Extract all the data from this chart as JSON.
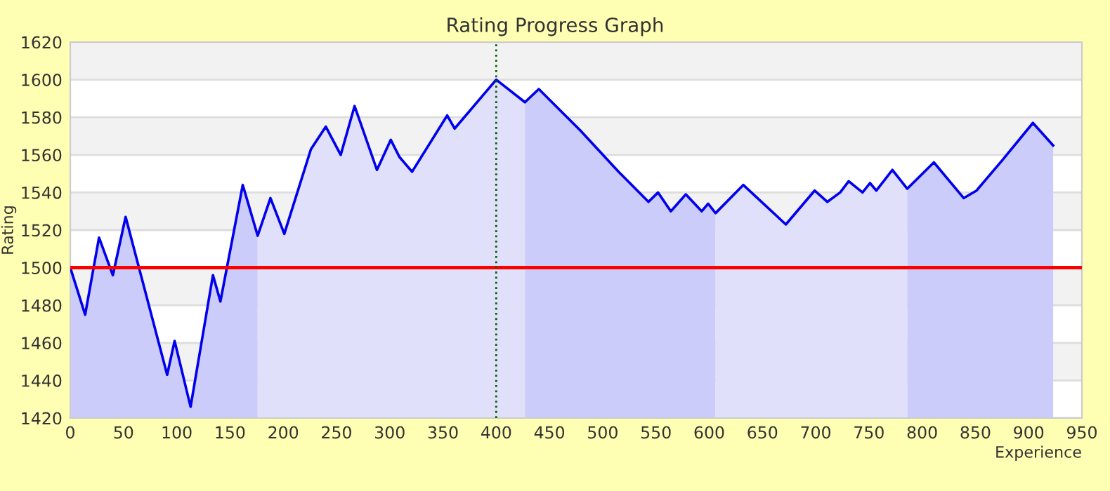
{
  "chart_data": {
    "type": "line",
    "title": "Rating Progress Graph",
    "xlabel": "Experience",
    "ylabel": "Rating",
    "xlim": [
      0,
      950
    ],
    "xticks": [
      0,
      50,
      100,
      150,
      200,
      250,
      300,
      350,
      400,
      450,
      500,
      550,
      600,
      650,
      700,
      750,
      800,
      850,
      900,
      950
    ],
    "ylim": [
      1420,
      1620
    ],
    "yticks": [
      1420,
      1440,
      1460,
      1480,
      1500,
      1520,
      1540,
      1560,
      1580,
      1600,
      1620
    ],
    "grid": "y",
    "legend": false,
    "marker": "none",
    "line_style": "solid",
    "series": [
      {
        "type": "area",
        "color": "#ccccfa",
        "x": [
          0,
          14,
          27,
          40,
          52,
          91,
          98,
          113,
          134,
          141,
          162,
          176
        ],
        "values": [
          1500,
          1475,
          1516,
          1496,
          1527,
          1443,
          1461,
          1426,
          1496,
          1482,
          1544,
          1517
        ]
      },
      {
        "type": "area",
        "color": "#e0e0fa",
        "x": [
          176,
          188,
          201,
          226,
          240,
          254,
          267,
          288,
          301,
          309,
          321,
          354,
          361,
          400,
          427
        ],
        "values": [
          1517,
          1537,
          1518,
          1563,
          1575,
          1560,
          1586,
          1552,
          1568,
          1559,
          1551,
          1581,
          1574,
          1600,
          1588
        ]
      },
      {
        "type": "area",
        "color": "#ccccfa",
        "x": [
          427,
          440,
          479,
          515,
          543,
          552,
          564,
          578,
          593,
          599,
          606
        ],
        "values": [
          1588,
          1595,
          1573,
          1551,
          1535,
          1540,
          1530,
          1539,
          1530,
          1534,
          1529
        ]
      },
      {
        "type": "area",
        "color": "#e0e0fa",
        "x": [
          606,
          632,
          672,
          699,
          711,
          723,
          731,
          744,
          751,
          757,
          772,
          786
        ],
        "values": [
          1529,
          1544,
          1523,
          1541,
          1535,
          1540,
          1546,
          1540,
          1545,
          1541,
          1552,
          1542
        ]
      },
      {
        "type": "area",
        "color": "#ccccfa",
        "x": [
          786,
          811,
          839,
          851,
          875,
          904,
          923
        ],
        "values": [
          1542,
          1556,
          1537,
          1541,
          1557,
          1577,
          1565
        ]
      },
      {
        "color": "#0000ee",
        "x": [
          0,
          14,
          27,
          40,
          52,
          91,
          98,
          113,
          134,
          141,
          162,
          176,
          188,
          201,
          226,
          240,
          254,
          267,
          288,
          301,
          309,
          321,
          354,
          361,
          400,
          427,
          440,
          479,
          515,
          543,
          552,
          564,
          578,
          593,
          599,
          606,
          632,
          672,
          699,
          711,
          723,
          731,
          744,
          751,
          757,
          772,
          786,
          811,
          839,
          851,
          875,
          904,
          923
        ],
        "values": [
          1500,
          1475,
          1516,
          1496,
          1527,
          1443,
          1461,
          1426,
          1496,
          1482,
          1544,
          1517,
          1537,
          1518,
          1563,
          1575,
          1560,
          1586,
          1552,
          1568,
          1559,
          1551,
          1581,
          1574,
          1600,
          1588,
          1595,
          1573,
          1551,
          1535,
          1540,
          1530,
          1539,
          1530,
          1534,
          1529,
          1544,
          1523,
          1541,
          1535,
          1540,
          1546,
          1540,
          1545,
          1541,
          1552,
          1542,
          1556,
          1537,
          1541,
          1557,
          1577,
          1565
        ]
      }
    ],
    "ref_lines": [
      {
        "axis": "y",
        "value": 1500,
        "color": "#ff0000",
        "line_style": "solid"
      },
      {
        "axis": "x",
        "value": 400,
        "color": "#006600",
        "line_style": "dotted"
      }
    ]
  }
}
